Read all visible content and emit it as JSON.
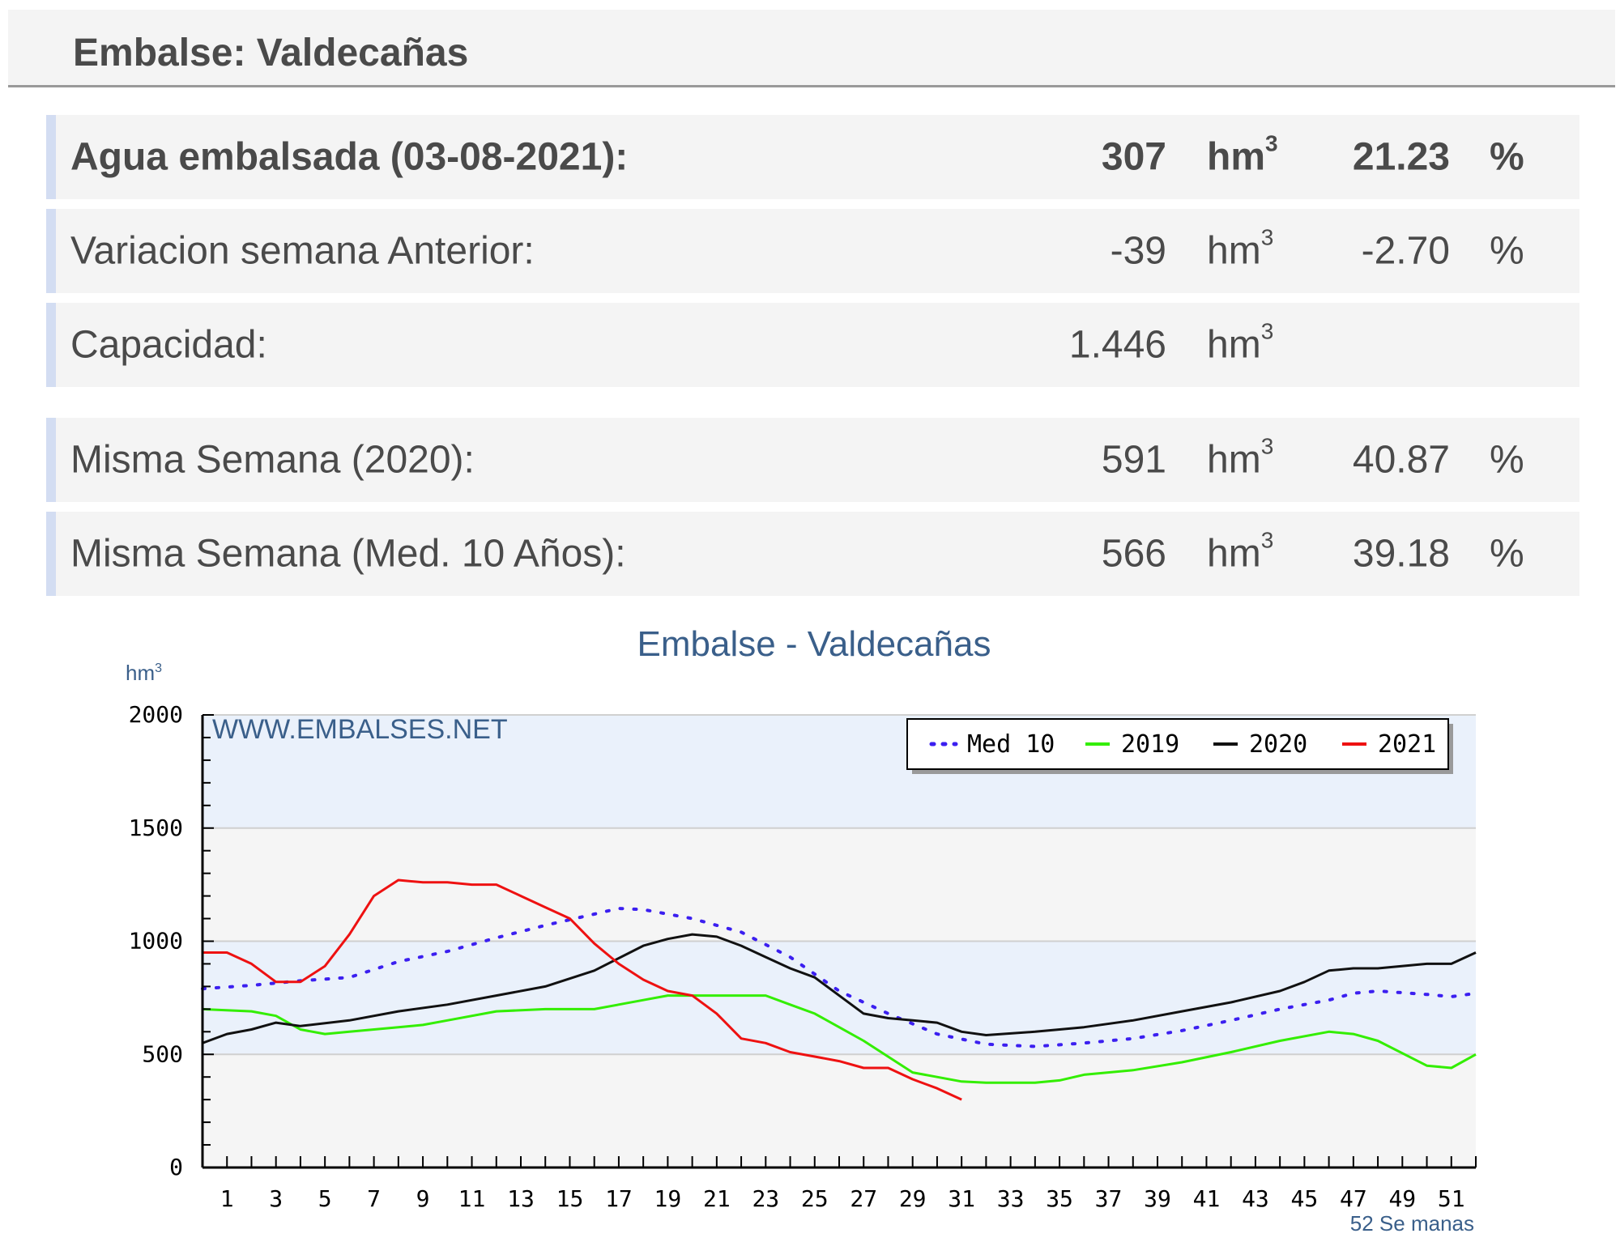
{
  "header": {
    "title": "Embalse: Valdecañas"
  },
  "rows": [
    {
      "label": "Agua embalsada (03-08-2021):",
      "value": "307",
      "unit": "hm",
      "unit_sup": "3",
      "pct": "21.23",
      "pct_sign": "%",
      "bold": true
    },
    {
      "label": "Variacion semana Anterior:",
      "value": "-39",
      "unit": "hm",
      "unit_sup": "3",
      "pct": "-2.70",
      "pct_sign": "%"
    },
    {
      "label": "Capacidad:",
      "value": "1.446",
      "unit": "hm",
      "unit_sup": "3",
      "pct": "",
      "pct_sign": ""
    },
    {
      "label": "Misma Semana (2020):",
      "value": "591",
      "unit": "hm",
      "unit_sup": "3",
      "pct": "40.87",
      "pct_sign": "%"
    },
    {
      "label": "Misma Semana (Med. 10 Años):",
      "value": "566",
      "unit": "hm",
      "unit_sup": "3",
      "pct": "39.18",
      "pct_sign": "%"
    }
  ],
  "chart_data": {
    "type": "line",
    "title": "Embalse - Valdecañas",
    "ylabel": "hm",
    "ylabel_sup": "3",
    "xlabel": "52 Se manas",
    "watermark": "WWW.EMBALSES.NET",
    "ylim": [
      0,
      2000
    ],
    "xlim": [
      0,
      52
    ],
    "yticks": [
      0,
      500,
      1000,
      1500,
      2000
    ],
    "xticks": [
      1,
      3,
      5,
      7,
      9,
      11,
      13,
      15,
      17,
      19,
      21,
      23,
      25,
      27,
      29,
      31,
      33,
      35,
      37,
      39,
      41,
      43,
      45,
      47,
      49,
      51
    ],
    "legend_position": "top-right",
    "grid": true,
    "series": [
      {
        "name": "Med 10",
        "color": "#3b1ff0",
        "style": "dotted",
        "x": [
          0,
          2,
          4,
          6,
          8,
          10,
          12,
          14,
          16,
          17,
          18,
          19,
          20,
          22,
          24,
          26,
          28,
          30,
          32,
          34,
          36,
          38,
          40,
          42,
          44,
          46,
          47,
          48,
          50,
          51,
          52
        ],
        "y": [
          790,
          805,
          825,
          840,
          910,
          955,
          1015,
          1070,
          1120,
          1145,
          1140,
          1120,
          1100,
          1040,
          930,
          780,
          680,
          590,
          545,
          535,
          550,
          570,
          605,
          650,
          700,
          740,
          770,
          780,
          765,
          755,
          770
        ]
      },
      {
        "name": "2019",
        "color": "#33ee00",
        "style": "solid",
        "x": [
          0,
          2,
          3,
          4,
          5,
          6,
          8,
          9,
          10,
          12,
          14,
          16,
          18,
          19,
          20,
          22,
          23,
          24,
          25,
          26,
          27,
          29,
          30,
          31,
          32,
          34,
          35,
          36,
          38,
          40,
          42,
          44,
          46,
          47,
          48,
          50,
          51,
          52
        ],
        "y": [
          700,
          690,
          670,
          610,
          590,
          600,
          620,
          630,
          650,
          690,
          700,
          700,
          740,
          760,
          760,
          760,
          760,
          720,
          680,
          620,
          560,
          420,
          400,
          380,
          375,
          375,
          385,
          410,
          430,
          465,
          510,
          560,
          600,
          590,
          560,
          450,
          440,
          500
        ]
      },
      {
        "name": "2020",
        "color": "#111111",
        "style": "solid",
        "x": [
          0,
          1,
          2,
          3,
          4,
          6,
          8,
          10,
          12,
          14,
          16,
          18,
          19,
          20,
          21,
          22,
          23,
          24,
          25,
          26,
          27,
          28,
          29,
          30,
          31,
          32,
          34,
          36,
          38,
          40,
          42,
          44,
          45,
          46,
          47,
          48,
          50,
          51,
          52
        ],
        "y": [
          550,
          590,
          610,
          640,
          625,
          650,
          690,
          720,
          760,
          800,
          870,
          980,
          1010,
          1030,
          1020,
          980,
          930,
          880,
          840,
          760,
          680,
          660,
          650,
          640,
          600,
          585,
          600,
          620,
          650,
          690,
          730,
          780,
          820,
          870,
          880,
          880,
          900,
          900,
          950
        ]
      },
      {
        "name": "2021",
        "color": "#ee1111",
        "style": "solid",
        "x": [
          0,
          1,
          2,
          3,
          4,
          5,
          6,
          7,
          8,
          9,
          10,
          11,
          12,
          13,
          14,
          15,
          16,
          17,
          18,
          19,
          20,
          21,
          22,
          23,
          24,
          25,
          26,
          27,
          28,
          29,
          30,
          31
        ],
        "y": [
          950,
          950,
          900,
          820,
          820,
          890,
          1030,
          1200,
          1270,
          1260,
          1260,
          1250,
          1250,
          1200,
          1150,
          1100,
          990,
          900,
          830,
          780,
          760,
          680,
          570,
          550,
          510,
          490,
          470,
          440,
          440,
          390,
          350,
          300
        ]
      }
    ]
  }
}
